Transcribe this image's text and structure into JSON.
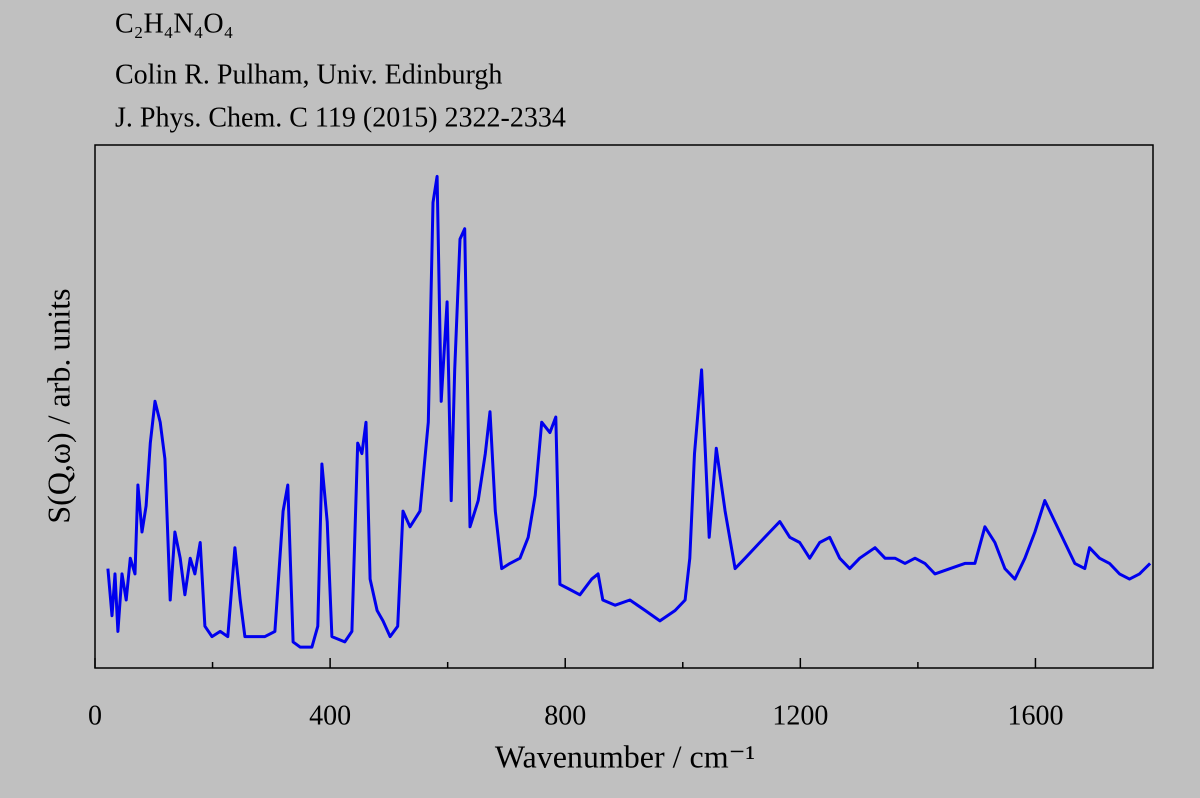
{
  "chart_data": {
    "type": "line",
    "title": "C₂H₄N₄O₄",
    "subtitle": [
      "Colin R. Pulham, Univ. Edinburgh",
      "J. Phys. Chem. C 119 (2015) 2322-2334"
    ],
    "xlabel": "Wavenumber / cm⁻¹",
    "ylabel": "S(Q,ω) / arb. units",
    "xlim": [
      0,
      1800
    ],
    "ylim": [
      0,
      100
    ],
    "xticks": [
      0,
      400,
      800,
      1200,
      1600
    ],
    "xminorticks": [
      200,
      600,
      1000,
      1400
    ],
    "grid": false,
    "series": [
      {
        "name": "C₂H₄N₄O₄",
        "color": "#0000ee",
        "x": [
          22,
          29,
          34,
          39,
          46,
          53,
          60,
          68,
          73,
          80,
          87,
          94,
          102,
          111,
          119,
          128,
          136,
          145,
          153,
          162,
          170,
          179,
          187,
          199,
          213,
          226,
          238,
          247,
          255,
          272,
          289,
          306,
          320,
          328,
          337,
          349,
          369,
          379,
          386,
          395,
          403,
          425,
          437,
          447,
          454,
          461,
          468,
          480,
          490,
          502,
          515,
          524,
          536,
          553,
          567,
          575,
          582,
          589,
          599,
          606,
          612,
          621,
          629,
          638,
          652,
          664,
          672,
          681,
          692,
          706,
          723,
          737,
          749,
          760,
          774,
          784,
          791,
          808,
          825,
          845,
          856,
          864,
          885,
          910,
          936,
          961,
          987,
          1004,
          1012,
          1020,
          1032,
          1045,
          1057,
          1072,
          1089,
          1106,
          1131,
          1148,
          1165,
          1182,
          1199,
          1216,
          1233,
          1250,
          1267,
          1284,
          1301,
          1327,
          1344,
          1361,
          1378,
          1395,
          1412,
          1429,
          1455,
          1480,
          1497,
          1514,
          1531,
          1548,
          1565,
          1582,
          1599,
          1616,
          1633,
          1650,
          1667,
          1684,
          1692,
          1709,
          1726,
          1743,
          1760,
          1777,
          1795
        ],
        "values": [
          19,
          10,
          18,
          7,
          18,
          13,
          21,
          18,
          35,
          26,
          31,
          43,
          51,
          47,
          40,
          13,
          26,
          21,
          14,
          21,
          18,
          24,
          8,
          6,
          7,
          6,
          23,
          13,
          6,
          6,
          6,
          7,
          30,
          35,
          5,
          4,
          4,
          8,
          39,
          28,
          6,
          5,
          7,
          43,
          41,
          47,
          17,
          11,
          9,
          6,
          8,
          30,
          27,
          30,
          47,
          89,
          94,
          51,
          70,
          32,
          57,
          82,
          84,
          27,
          32,
          41,
          49,
          30,
          19,
          20,
          21,
          25,
          33,
          47,
          45,
          48,
          16,
          15,
          14,
          17,
          18,
          13,
          12,
          13,
          11,
          9,
          11,
          13,
          21,
          41,
          57,
          25,
          42,
          30,
          19,
          21,
          24,
          26,
          28,
          25,
          24,
          21,
          24,
          25,
          21,
          19,
          21,
          23,
          21,
          21,
          20,
          21,
          20,
          18,
          19,
          20,
          20,
          27,
          24,
          19,
          17,
          21,
          26,
          32,
          28,
          24,
          20,
          19,
          23,
          21,
          20,
          18,
          17,
          18,
          20
        ]
      }
    ]
  }
}
